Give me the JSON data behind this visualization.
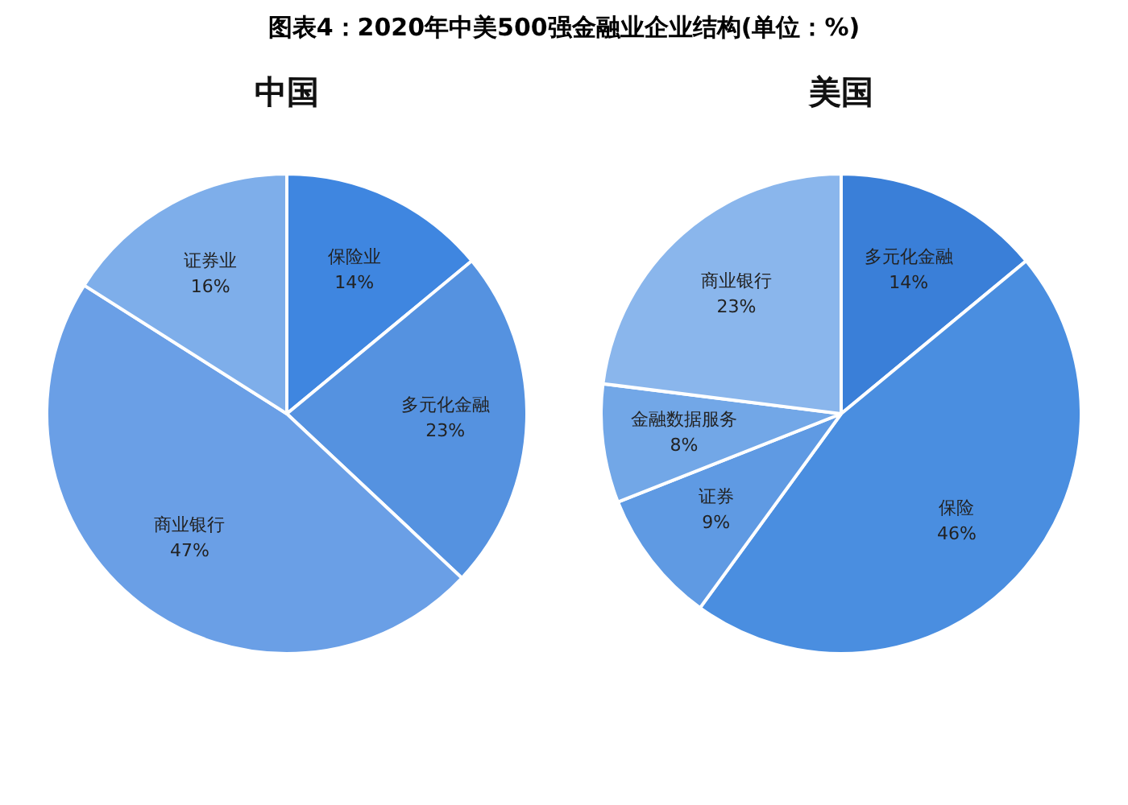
{
  "chart_data": [
    {
      "type": "pie",
      "title": "中国",
      "annotations": [
        "图表4：2020年中美500强金融业企业结构(单位：%)"
      ],
      "categories": [
        "保险业",
        "多元化金融",
        "商业银行",
        "证券业"
      ],
      "values": [
        14,
        23,
        47,
        16
      ],
      "value_labels": [
        "14%",
        "23%",
        "47%",
        "16%"
      ],
      "colors": [
        "#3f86e0",
        "#5592e0",
        "#6a9fe6",
        "#7eaeea"
      ],
      "legend": false
    },
    {
      "type": "pie",
      "title": "美国",
      "categories": [
        "多元化金融",
        "保险",
        "证券",
        "金融数据服务",
        "商业银行"
      ],
      "values": [
        14,
        46,
        9,
        8,
        23
      ],
      "value_labels": [
        "14%",
        "46%",
        "9%",
        "8%",
        "23%"
      ],
      "colors": [
        "#3a7fd8",
        "#4a8ee0",
        "#5f9ae3",
        "#72a7e7",
        "#8ab6ec"
      ],
      "legend": false
    }
  ]
}
